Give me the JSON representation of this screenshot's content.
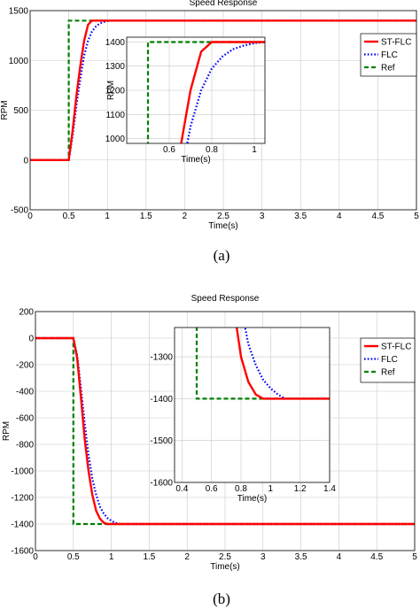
{
  "figure": {
    "caption_a": "(a)",
    "caption_b": "(b)"
  },
  "chart_data": [
    {
      "id": "a",
      "type": "line",
      "title": "Speed Response",
      "xlabel": "Time(s)",
      "ylabel": "RPM",
      "xlim": [
        0,
        5
      ],
      "ylim": [
        -500,
        1500
      ],
      "xticks": [
        "0",
        "0.5",
        "1",
        "1.5",
        "2",
        "2.5",
        "3",
        "3.5",
        "4",
        "4.5",
        "5"
      ],
      "yticks": [
        "-500",
        "0",
        "500",
        "1000",
        "1500"
      ],
      "grid": true,
      "legend": "top-right",
      "series": [
        {
          "name": "ST-FLC",
          "color": "#ff0000",
          "style": "solid",
          "x": [
            0,
            0.5,
            0.55,
            0.6,
            0.65,
            0.7,
            0.75,
            0.8,
            0.85,
            5
          ],
          "y": [
            0,
            0,
            300,
            650,
            950,
            1200,
            1360,
            1400,
            1400,
            1400
          ]
        },
        {
          "name": "FLC",
          "color": "#0000ff",
          "style": "dotted",
          "x": [
            0,
            0.5,
            0.55,
            0.6,
            0.65,
            0.7,
            0.75,
            0.8,
            0.85,
            0.9,
            0.95,
            1.0,
            1.05,
            5
          ],
          "y": [
            0,
            0,
            250,
            550,
            820,
            1050,
            1200,
            1290,
            1340,
            1370,
            1385,
            1395,
            1400,
            1400
          ]
        },
        {
          "name": "Ref",
          "color": "#008000",
          "style": "dashed",
          "x": [
            0,
            0.5,
            0.5,
            5
          ],
          "y": [
            0,
            0,
            1400,
            1400
          ]
        }
      ],
      "inset": {
        "xlim": [
          0.4,
          1.05
        ],
        "ylim": [
          980,
          1420
        ],
        "xlabel": "Time(s)",
        "ylabel": "RPM",
        "xticks": [
          "0.6",
          "0.8",
          "1"
        ],
        "yticks": [
          "1000",
          "1100",
          "1200",
          "1300",
          "1400"
        ]
      }
    },
    {
      "id": "b",
      "type": "line",
      "title": "Speed Response",
      "xlabel": "Time(s)",
      "ylabel": "RPM",
      "xlim": [
        0,
        5
      ],
      "ylim": [
        -1600,
        200
      ],
      "xticks": [
        "0",
        "0.5",
        "1",
        "1.5",
        "2",
        "2.5",
        "3",
        "3.5",
        "4",
        "4.5",
        "5"
      ],
      "yticks": [
        "-1600",
        "-1400",
        "-1200",
        "-1000",
        "-800",
        "-600",
        "-400",
        "-200",
        "0",
        "200"
      ],
      "grid": true,
      "legend": "top-right",
      "series": [
        {
          "name": "ST-FLC",
          "color": "#ff0000",
          "style": "solid",
          "x": [
            0,
            0.5,
            0.55,
            0.6,
            0.65,
            0.7,
            0.75,
            0.8,
            0.85,
            0.9,
            0.95,
            1.0,
            5
          ],
          "y": [
            0,
            0,
            -150,
            -450,
            -760,
            -1000,
            -1180,
            -1300,
            -1360,
            -1390,
            -1400,
            -1400,
            -1400
          ]
        },
        {
          "name": "FLC",
          "color": "#0000ff",
          "style": "dotted",
          "x": [
            0,
            0.5,
            0.55,
            0.6,
            0.65,
            0.7,
            0.75,
            0.8,
            0.85,
            0.9,
            0.95,
            1.0,
            1.05,
            1.1,
            5
          ],
          "y": [
            0,
            0,
            -130,
            -380,
            -640,
            -880,
            -1060,
            -1180,
            -1270,
            -1320,
            -1355,
            -1375,
            -1390,
            -1400,
            -1400
          ]
        },
        {
          "name": "Ref",
          "color": "#008000",
          "style": "dashed",
          "x": [
            0,
            0.5,
            0.5,
            5
          ],
          "y": [
            0,
            0,
            -1400,
            -1400
          ]
        }
      ],
      "inset": {
        "xlim": [
          0.35,
          1.4
        ],
        "ylim": [
          -1600,
          -1230
        ],
        "xlabel": "Time(s)",
        "ylabel": "",
        "xticks": [
          "0.4",
          "0.6",
          "0.8",
          "1",
          "1.2",
          "1.4"
        ],
        "yticks": [
          "-1600",
          "-1500",
          "-1400",
          "-1300"
        ]
      }
    }
  ]
}
